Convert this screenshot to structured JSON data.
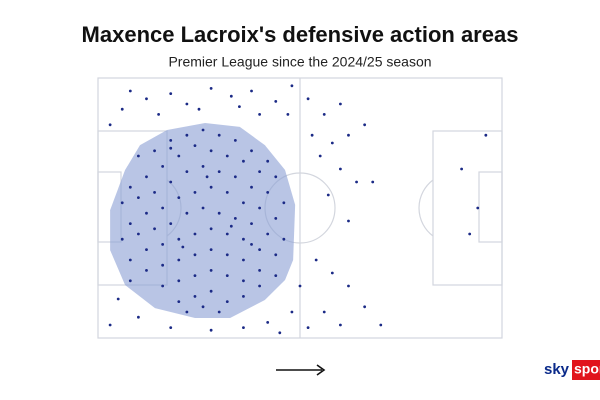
{
  "chart_data": {
    "type": "scatter",
    "title": "Maxence Lacroix's defensive action areas",
    "subtitle": "Premier League since the 2024/25 season",
    "xlim": [
      0,
      100
    ],
    "ylim": [
      0,
      100
    ],
    "y_inverted": true,
    "color": "#1b2a86",
    "x": [
      8,
      12,
      18,
      22,
      6,
      28,
      33,
      38,
      44,
      47,
      40,
      15,
      3,
      25,
      35,
      48,
      52,
      56,
      60,
      53,
      58,
      62,
      66,
      55,
      60,
      64,
      57,
      62,
      68,
      5,
      10,
      18,
      28,
      36,
      42,
      48,
      50,
      54,
      58,
      62,
      66,
      70,
      56,
      60,
      52,
      45,
      3,
      8,
      90,
      94,
      92,
      96,
      10,
      14,
      18,
      22,
      26,
      30,
      34,
      38,
      42,
      44,
      40,
      36,
      32,
      28,
      24,
      20,
      16,
      12,
      8,
      6,
      10,
      14,
      18,
      22,
      26,
      30,
      34,
      38,
      42,
      46,
      44,
      40,
      36,
      32,
      28,
      24,
      20,
      16,
      12,
      8,
      6,
      10,
      14,
      18,
      22,
      26,
      30,
      34,
      38,
      42,
      46,
      44,
      40,
      36,
      32,
      28,
      24,
      20,
      16,
      12,
      8,
      12,
      16,
      20,
      24,
      28,
      32,
      36,
      40,
      44,
      40,
      36,
      32,
      28,
      24,
      20,
      16,
      20,
      24,
      28,
      32,
      36,
      26,
      30,
      22,
      18,
      27,
      33,
      21,
      38
    ],
    "y": [
      5,
      8,
      6,
      10,
      12,
      4,
      7,
      5,
      9,
      14,
      14,
      14,
      18,
      12,
      11,
      3,
      8,
      14,
      10,
      22,
      25,
      22,
      18,
      30,
      35,
      40,
      45,
      55,
      40,
      85,
      92,
      96,
      97,
      96,
      94,
      90,
      80,
      70,
      75,
      80,
      88,
      95,
      90,
      95,
      96,
      98,
      95,
      78,
      35,
      50,
      60,
      22,
      30,
      28,
      24,
      22,
      20,
      22,
      24,
      28,
      32,
      38,
      36,
      32,
      30,
      28,
      26,
      30,
      34,
      38,
      42,
      48,
      46,
      44,
      40,
      36,
      34,
      36,
      38,
      42,
      44,
      48,
      54,
      50,
      48,
      44,
      42,
      44,
      46,
      50,
      52,
      56,
      62,
      60,
      58,
      56,
      52,
      50,
      52,
      54,
      56,
      60,
      62,
      68,
      66,
      62,
      60,
      58,
      60,
      62,
      64,
      66,
      70,
      74,
      72,
      70,
      68,
      66,
      68,
      70,
      74,
      76,
      80,
      78,
      76,
      74,
      76,
      78,
      80,
      86,
      84,
      82,
      86,
      84,
      88,
      90,
      90,
      27,
      38,
      57,
      65,
      64
    ],
    "hull": {
      "color": "#8a9fd4",
      "x": [
        17.1,
        26.5,
        35.1,
        41.3,
        46.3,
        48.8,
        48.3,
        46.3,
        41.3,
        32.7,
        24,
        14.1,
        6.7,
        3,
        3,
        6.7,
        10.4
      ],
      "y": [
        20,
        17.3,
        18.8,
        25.8,
        35.4,
        48.8,
        70,
        77.7,
        85.4,
        92.3,
        92.3,
        88.5,
        79.6,
        66.2,
        50.8,
        35.4,
        25.8
      ]
    }
  },
  "logo": {
    "sky": "sky",
    "sports": "sports"
  }
}
